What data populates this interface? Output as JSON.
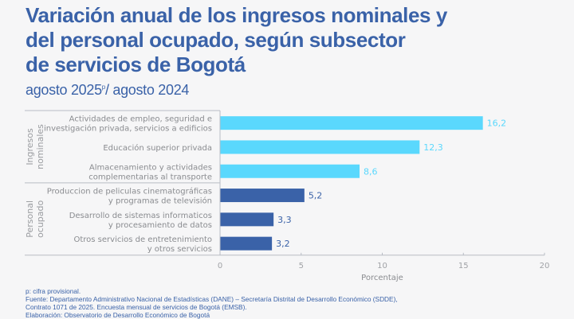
{
  "header": {
    "title_lines": [
      "Variación anual de los ingresos nominales y",
      "del personal ocupado, según subsector",
      "de servicios de Bogotá"
    ],
    "subtitle_main": "agosto 2025",
    "subtitle_sup": "p",
    "subtitle_rest": "/ agosto 2024"
  },
  "chart_data": {
    "type": "bar",
    "orientation": "horizontal",
    "title": "Variación anual de los ingresos nominales y del personal ocupado, según subsector de servicios de Bogotá",
    "subtitle": "agosto 2025p/ agosto 2024",
    "xlabel": "Porcentaje",
    "ylabel": "",
    "xlim": [
      0,
      20
    ],
    "xticks": [
      "0",
      "5",
      "10",
      "15",
      "20"
    ],
    "grid": false,
    "groups": [
      {
        "name": "Ingresos nominales",
        "label_lines": [
          "Ingresos",
          "nominales"
        ],
        "color": "#5ad8fd",
        "label_color": "#5ad8fd",
        "categories": [
          {
            "lines": [
              "Actividades de empleo, seguridad e",
              "investigación privada, servicios a edificios"
            ],
            "value": 16.2,
            "value_label": "16,2"
          },
          {
            "lines": [
              "Educación superior privada"
            ],
            "value": 12.3,
            "value_label": "12,3"
          },
          {
            "lines": [
              "Almacenamiento y actividades",
              "complementarias al transporte"
            ],
            "value": 8.6,
            "value_label": "8,6"
          }
        ]
      },
      {
        "name": "Personal ocupado",
        "label_lines": [
          "Personal",
          "ocupado"
        ],
        "color": "#3a62a8",
        "label_color": "#3a62a8",
        "categories": [
          {
            "lines": [
              "Produccion de peliculas cinematográficas",
              "y programas de televisión"
            ],
            "value": 5.2,
            "value_label": "5,2"
          },
          {
            "lines": [
              "Desarrollo de sistemas informaticos",
              "y procesamiento de datos"
            ],
            "value": 3.3,
            "value_label": "3,3"
          },
          {
            "lines": [
              "Otros servicios de entretenimiento",
              "y otros servicios"
            ],
            "value": 3.2,
            "value_label": "3,2"
          }
        ]
      }
    ]
  },
  "footnotes": {
    "note": "p: cifra provisional.",
    "source_1": "Fuente: Departamento Administrativo Nacional de Estadísticas (DANE) – Secretaría Distrital de Desarrollo Económico (SDDE),",
    "source_2": "Contrato 1071 de 2025. Encuesta mensual de servicios de Bogotá (EMSB).",
    "elaboration": "Elaboración: Observatorio de Desarrollo Económico de Bogotá"
  }
}
